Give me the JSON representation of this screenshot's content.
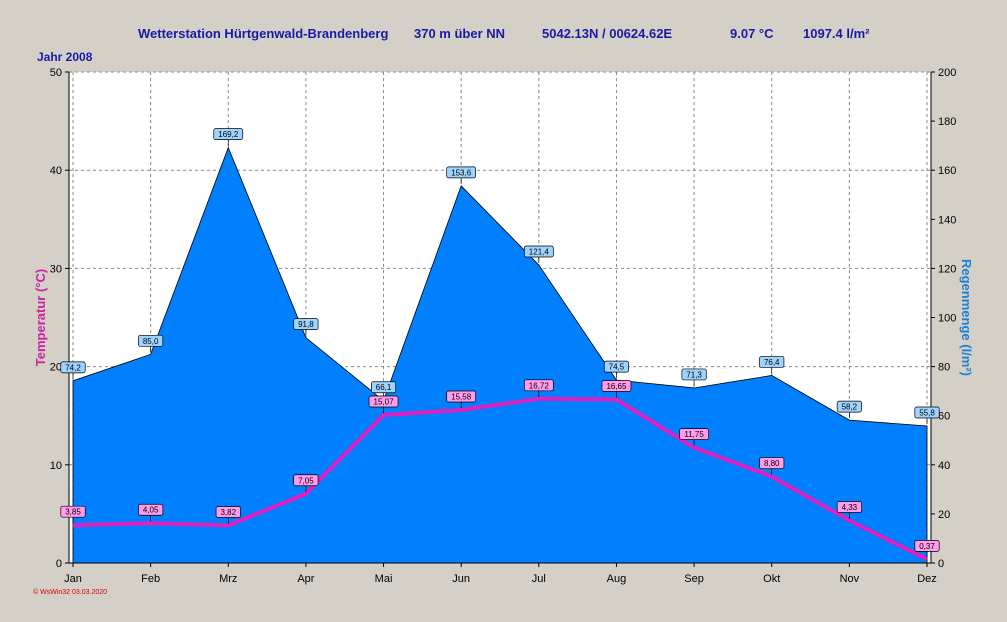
{
  "header": {
    "station": "Wetterstation Hürtgenwald-Brandenberg",
    "altitude": "370 m über NN",
    "coords": "5042.13N / 00624.62E",
    "temp": "9.07 °C",
    "rain": "1097.4 l/m²",
    "year": "Jahr  2008"
  },
  "footer": "© WsWin32  03.03.2020",
  "chart_data": {
    "type": "area",
    "categories": [
      "Jan",
      "Feb",
      "Mrz",
      "Apr",
      "Mai",
      "Jun",
      "Jul",
      "Aug",
      "Sep",
      "Okt",
      "Nov",
      "Dez"
    ],
    "series": [
      {
        "name": "Regenmenge",
        "axis": "right",
        "type": "area",
        "color": "#0080ff",
        "values": [
          74.2,
          85.0,
          169.2,
          91.8,
          66.1,
          153.6,
          121.4,
          74.5,
          71.3,
          76.4,
          58.2,
          55.8
        ],
        "labels": [
          "74,2",
          "85,0",
          "169,2",
          "91,8",
          "66,1",
          "153,6",
          "121,4",
          "74,5",
          "71,3",
          "76,4",
          "58,2",
          "55,8"
        ]
      },
      {
        "name": "Temperatur",
        "axis": "left",
        "type": "line",
        "color": "#e020c0",
        "values": [
          3.85,
          4.05,
          3.82,
          7.05,
          15.07,
          15.58,
          16.72,
          16.65,
          11.75,
          8.8,
          4.33,
          0.37
        ],
        "labels": [
          "3,85",
          "4,05",
          "3,82",
          "7,05",
          "15,07",
          "15,58",
          "16,72",
          "16,65",
          "11,75",
          "8,80",
          "4,33",
          "0,37"
        ]
      }
    ],
    "ylabel": "Temperatur  (°C)",
    "y2label": "Regenmenge  (l/m²)",
    "ylim": [
      0,
      50
    ],
    "y2lim": [
      0,
      200
    ],
    "yticks": [
      0,
      10,
      20,
      30,
      40,
      50
    ],
    "y2ticks": [
      0,
      20,
      40,
      60,
      80,
      100,
      120,
      140,
      160,
      180,
      200
    ],
    "grid": true,
    "colors": {
      "rain": "#0080ff",
      "temp": "#e020c0",
      "title": "#1a1aa6",
      "rain_axis": "#1a7fd6",
      "temp_axis": "#d020a0"
    }
  }
}
